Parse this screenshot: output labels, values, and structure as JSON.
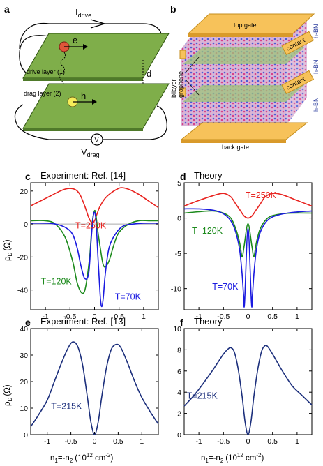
{
  "figure": {
    "panel_a": {
      "label": "a",
      "i_drive": "I",
      "i_drive_sub": "drive",
      "e_label": "e",
      "h_label": "h",
      "drive_layer": "drive layer (1)",
      "drag_layer": "drag layer (2)",
      "d_label": "d",
      "v_label": "V",
      "v_drag": "V",
      "v_drag_sub": "drag"
    },
    "panel_b": {
      "label": "b",
      "top_gate": "top gate",
      "back_gate": "back gate",
      "contact": "contact",
      "hbn": "h-BN",
      "bilayer": "bilayer",
      "graphene": "graphene"
    },
    "colors": {
      "red": "#e8231f",
      "green": "#1c8a1c",
      "blue": "#1a1ae0",
      "navy": "#1c2f7c",
      "zero": "#aaaaaa"
    },
    "ylabel_main": "ρ",
    "ylabel_sub": "D",
    "ylabel_unit": "(Ω)",
    "xlabel_main": "n",
    "xlabel_sub1": "1",
    "xlabel_mid": "=-n",
    "xlabel_sub2": "2",
    "xlabel_unit": "(10",
    "xlabel_exp": "12",
    "xlabel_unit2": " cm",
    "xlabel_exp2": "-2",
    "xlabel_close": ")"
  },
  "chart_data": [
    {
      "panel": "c",
      "type": "line",
      "title": "Experiment: Ref. [14]",
      "xlim": [
        -1.3,
        1.3
      ],
      "ylim": [
        -52,
        25
      ],
      "xticks": [
        -1,
        -0.5,
        0,
        0.5,
        1
      ],
      "xticklabels": [
        "-1",
        "-0.5",
        "0",
        "0.5",
        "1"
      ],
      "yticks": [
        20,
        0,
        -20,
        -40
      ],
      "yticklabels": [
        "20",
        "0",
        "-20",
        "-40"
      ],
      "series": [
        {
          "name": "T=250K",
          "color": "#e8231f",
          "x": [
            -1.3,
            -1.1,
            -0.9,
            -0.7,
            -0.55,
            -0.4,
            -0.3,
            -0.2,
            -0.12,
            -0.06,
            0,
            0.05,
            0.1,
            0.2,
            0.3,
            0.45,
            0.55,
            0.7,
            0.9,
            1.1,
            1.3
          ],
          "y": [
            11,
            14,
            17,
            20,
            21.5,
            21,
            18,
            11,
            4,
            1,
            2,
            6,
            10,
            15,
            18,
            21,
            22,
            21,
            18,
            14,
            10
          ]
        },
        {
          "name": "T=120K",
          "color": "#1c8a1c",
          "x": [
            -1.3,
            -1.0,
            -0.8,
            -0.6,
            -0.45,
            -0.35,
            -0.25,
            -0.18,
            -0.1,
            -0.05,
            0,
            0.03,
            0.07,
            0.12,
            0.17,
            0.22,
            0.3,
            0.4,
            0.5,
            0.7,
            0.9,
            1.1,
            1.3
          ],
          "y": [
            2,
            2,
            0,
            -8,
            -22,
            -36,
            -42,
            -38,
            -20,
            0,
            8,
            5,
            -5,
            -15,
            -24,
            -26,
            -22,
            -12,
            -5,
            0,
            2,
            2,
            2
          ]
        },
        {
          "name": "T=70K",
          "color": "#1a1ae0",
          "x": [
            -1.3,
            -1.0,
            -0.8,
            -0.6,
            -0.45,
            -0.35,
            -0.28,
            -0.2,
            -0.12,
            -0.07,
            -0.03,
            0,
            0.03,
            0.07,
            0.12,
            0.15,
            0.18,
            0.22,
            0.3,
            0.45,
            0.6,
            0.8,
            1.0,
            1.3
          ],
          "y": [
            0.5,
            0.5,
            0,
            -2,
            -6,
            -15,
            -25,
            -33,
            -30,
            -10,
            4,
            7,
            2,
            -20,
            -45,
            -50,
            -44,
            -30,
            -14,
            -5,
            -1,
            0,
            0.5,
            0.5
          ]
        }
      ],
      "labels": [
        "T=250K",
        "T=120K",
        "T=70K"
      ]
    },
    {
      "panel": "d",
      "type": "line",
      "title": "Theory",
      "xlim": [
        -1.3,
        1.3
      ],
      "ylim": [
        -13,
        5
      ],
      "xticks": [
        -1,
        -0.5,
        0,
        0.5,
        1
      ],
      "xticklabels": [
        "-1",
        "-0.5",
        "0",
        "0.5",
        "1"
      ],
      "yticks": [
        5,
        0,
        -5,
        -10
      ],
      "yticklabels": [
        "5",
        "0",
        "-5",
        "-10"
      ],
      "series": [
        {
          "name": "T=250K",
          "color": "#e8231f",
          "x": [
            -1.3,
            -1.0,
            -0.7,
            -0.5,
            -0.35,
            -0.25,
            -0.15,
            -0.08,
            0,
            0.08,
            0.15,
            0.25,
            0.35,
            0.5,
            0.7,
            1.0,
            1.3
          ],
          "y": [
            1.7,
            2.5,
            3.2,
            3.5,
            3.0,
            2.0,
            1.0,
            0.3,
            0,
            0.3,
            1.0,
            2.0,
            3.0,
            3.5,
            3.3,
            2.5,
            1.7
          ]
        },
        {
          "name": "T=120K",
          "color": "#1c8a1c",
          "x": [
            -1.3,
            -1.0,
            -0.7,
            -0.5,
            -0.35,
            -0.25,
            -0.17,
            -0.12,
            -0.08,
            0,
            0.08,
            0.12,
            0.17,
            0.25,
            0.4,
            0.6,
            0.9,
            1.3
          ],
          "y": [
            0.7,
            0.9,
            1.0,
            0.7,
            0,
            -1.5,
            -3.5,
            -5.5,
            -4,
            -0.8,
            -4,
            -5.5,
            -3.5,
            -1.5,
            0,
            0.5,
            0.7,
            0.7
          ]
        },
        {
          "name": "T=70K",
          "color": "#1a1ae0",
          "x": [
            -1.3,
            -1.0,
            -0.7,
            -0.5,
            -0.35,
            -0.25,
            -0.17,
            -0.12,
            -0.09,
            -0.07,
            0,
            0.07,
            0.09,
            0.12,
            0.17,
            0.25,
            0.4,
            0.6,
            0.9,
            1.3
          ],
          "y": [
            1.3,
            1.3,
            1.1,
            0.6,
            -0.4,
            -2,
            -4.5,
            -8,
            -11,
            -12,
            -1.5,
            -12,
            -11,
            -8,
            -4.5,
            -2,
            -0.3,
            0.4,
            0.8,
            1.0
          ]
        }
      ],
      "labels": [
        "T=250K",
        "T=120K",
        "T=70K"
      ]
    },
    {
      "panel": "e",
      "type": "line",
      "title": "Experiment: Ref. [13]",
      "xlim": [
        -1.35,
        1.35
      ],
      "ylim": [
        0,
        40
      ],
      "xticks": [
        -1,
        -0.5,
        0,
        0.5,
        1
      ],
      "xticklabels": [
        "-1",
        "-0.5",
        "0",
        "0.5",
        "1"
      ],
      "yticks": [
        40,
        30,
        20,
        10,
        0
      ],
      "yticklabels": [
        "40",
        "30",
        "20",
        "10",
        "0"
      ],
      "series": [
        {
          "name": "T=215K",
          "color": "#1c2f7c",
          "x": [
            -1.35,
            -1.2,
            -1.0,
            -0.85,
            -0.7,
            -0.55,
            -0.45,
            -0.35,
            -0.25,
            -0.15,
            -0.08,
            0,
            0.08,
            0.15,
            0.25,
            0.35,
            0.45,
            0.55,
            0.7,
            0.85,
            1.0,
            1.2,
            1.35
          ],
          "y": [
            3,
            7,
            13,
            20,
            27,
            33,
            35,
            33,
            26,
            14,
            5,
            0,
            5,
            14,
            25,
            32,
            34,
            33,
            27,
            20,
            14,
            8,
            4
          ]
        }
      ],
      "labels": [
        "T=215K"
      ]
    },
    {
      "panel": "f",
      "type": "line",
      "title": "Theory",
      "xlim": [
        -1.3,
        1.3
      ],
      "ylim": [
        0,
        10
      ],
      "xticks": [
        -1,
        -0.5,
        0,
        0.5,
        1
      ],
      "xticklabels": [
        "-1",
        "-0.5",
        "0",
        "0.5",
        "1"
      ],
      "yticks": [
        10,
        8,
        6,
        4,
        2,
        0
      ],
      "yticklabels": [
        "10",
        "8",
        "6",
        "4",
        "2",
        "0"
      ],
      "series": [
        {
          "name": "T=215K",
          "color": "#1c2f7c",
          "x": [
            -1.3,
            -1.1,
            -0.9,
            -0.7,
            -0.5,
            -0.4,
            -0.35,
            -0.28,
            -0.2,
            -0.12,
            -0.06,
            0,
            0.06,
            0.12,
            0.2,
            0.28,
            0.35,
            0.4,
            0.5,
            0.7,
            0.9,
            1.1,
            1.3
          ],
          "y": [
            2.7,
            3.7,
            4.9,
            6.2,
            7.6,
            8.1,
            8.2,
            7.8,
            6.2,
            3.6,
            1.2,
            0,
            1.2,
            3.6,
            6.2,
            7.9,
            8.4,
            8.3,
            7.6,
            6.0,
            4.6,
            3.7,
            2.8
          ]
        }
      ],
      "labels": [
        "T=215K"
      ]
    }
  ]
}
